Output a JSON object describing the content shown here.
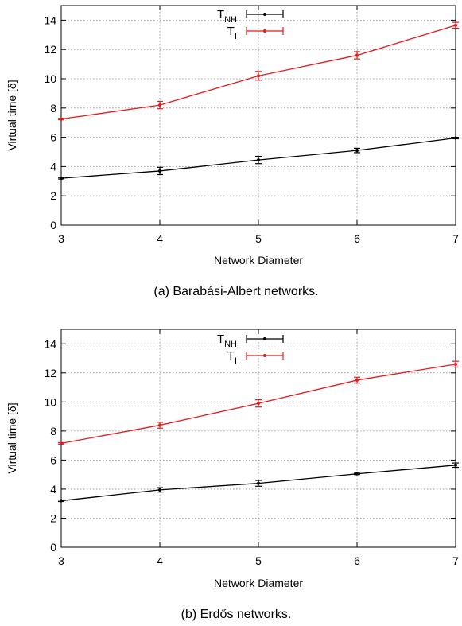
{
  "chart_data": [
    {
      "type": "line",
      "caption": "(a) Barabási-Albert networks.",
      "xlabel": "Network Diameter",
      "ylabel": "Virtual time [δ]",
      "xlim": [
        3,
        7
      ],
      "ylim": [
        0,
        15
      ],
      "xticks": [
        3,
        4,
        5,
        6,
        7
      ],
      "yticks": [
        0,
        2,
        4,
        6,
        8,
        10,
        12,
        14
      ],
      "grid": true,
      "legend_position": "top-center",
      "x": [
        3,
        4,
        5,
        6,
        7
      ],
      "series": [
        {
          "name_main": "T",
          "name_sub": "NH",
          "color": "#000000",
          "values": [
            3.2,
            3.7,
            4.45,
            5.1,
            5.95
          ],
          "errors": [
            0.05,
            0.25,
            0.25,
            0.15,
            0.05
          ]
        },
        {
          "name_main": "T",
          "name_sub": "I",
          "color": "#e41a1c",
          "values": [
            7.25,
            8.2,
            10.2,
            11.6,
            13.65
          ],
          "errors": [
            0.05,
            0.25,
            0.3,
            0.25,
            0.2
          ]
        }
      ]
    },
    {
      "type": "line",
      "caption": "(b) Erdős networks.",
      "xlabel": "Network Diameter",
      "ylabel": "Virtual time [δ]",
      "xlim": [
        3,
        7
      ],
      "ylim": [
        0,
        15
      ],
      "xticks": [
        3,
        4,
        5,
        6,
        7
      ],
      "yticks": [
        0,
        2,
        4,
        6,
        8,
        10,
        12,
        14
      ],
      "grid": true,
      "legend_position": "top-center",
      "x": [
        3,
        4,
        5,
        6,
        7
      ],
      "series": [
        {
          "name_main": "T",
          "name_sub": "NH",
          "color": "#000000",
          "values": [
            3.2,
            3.95,
            4.4,
            5.05,
            5.65
          ],
          "errors": [
            0.05,
            0.15,
            0.2,
            0.05,
            0.15
          ]
        },
        {
          "name_main": "T",
          "name_sub": "I",
          "color": "#e41a1c",
          "values": [
            7.15,
            8.4,
            9.9,
            11.5,
            12.6
          ],
          "errors": [
            0.05,
            0.2,
            0.25,
            0.2,
            0.2
          ]
        }
      ]
    }
  ]
}
